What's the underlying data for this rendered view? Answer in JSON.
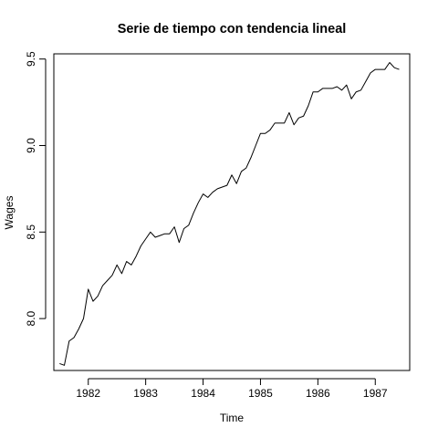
{
  "chart_data": {
    "type": "line",
    "title": "Serie de tiempo con tendencia lineal",
    "xlabel": "Time",
    "ylabel": "Wages",
    "xlim": [
      1981.4,
      1987.6
    ],
    "ylim": [
      7.7,
      9.53
    ],
    "x_ticks": [
      1982,
      1983,
      1984,
      1985,
      1986,
      1987
    ],
    "x_tick_labels": [
      "1982",
      "1983",
      "1984",
      "1985",
      "1986",
      "1987"
    ],
    "y_ticks": [
      8.0,
      8.5,
      9.0,
      9.5
    ],
    "y_tick_labels": [
      "8.0",
      "8.5",
      "9.0",
      "9.5"
    ],
    "grid": false,
    "line_color": "#000000",
    "series": [
      {
        "x": [
          1981.5,
          1981.5833,
          1981.6667,
          1981.75,
          1981.8333,
          1981.9167,
          1982.0,
          1982.0833,
          1982.1667,
          1982.25,
          1982.3333,
          1982.4167,
          1982.5,
          1982.5833,
          1982.6667,
          1982.75,
          1982.8333,
          1982.9167,
          1983.0,
          1983.0833,
          1983.1667,
          1983.25,
          1983.3333,
          1983.4167,
          1983.5,
          1983.5833,
          1983.6667,
          1983.75,
          1983.8333,
          1983.9167,
          1984.0,
          1984.0833,
          1984.1667,
          1984.25,
          1984.3333,
          1984.4167,
          1984.5,
          1984.5833,
          1984.6667,
          1984.75,
          1984.8333,
          1984.9167,
          1985.0,
          1985.0833,
          1985.1667,
          1985.25,
          1985.3333,
          1985.4167,
          1985.5,
          1985.5833,
          1985.6667,
          1985.75,
          1985.8333,
          1985.9167,
          1986.0,
          1986.0833,
          1986.1667,
          1986.25,
          1986.3333,
          1986.4167,
          1986.5,
          1986.5833,
          1986.6667,
          1986.75,
          1986.8333,
          1986.9167,
          1987.0,
          1987.0833,
          1987.1667,
          1987.25,
          1987.3333,
          1987.4167
        ],
        "values": [
          7.74,
          7.73,
          7.87,
          7.89,
          7.94,
          8.0,
          8.17,
          8.1,
          8.13,
          8.19,
          8.22,
          8.25,
          8.31,
          8.26,
          8.33,
          8.31,
          8.36,
          8.42,
          8.46,
          8.5,
          8.47,
          8.48,
          8.49,
          8.49,
          8.53,
          8.44,
          8.52,
          8.54,
          8.61,
          8.67,
          8.72,
          8.7,
          8.73,
          8.75,
          8.76,
          8.77,
          8.83,
          8.78,
          8.85,
          8.87,
          8.93,
          9.0,
          9.07,
          9.07,
          9.09,
          9.13,
          9.13,
          9.13,
          9.19,
          9.12,
          9.16,
          9.17,
          9.23,
          9.31,
          9.31,
          9.33,
          9.33,
          9.33,
          9.34,
          9.32,
          9.35,
          9.27,
          9.31,
          9.32,
          9.37,
          9.42,
          9.44,
          9.44,
          9.44,
          9.48,
          9.45,
          9.44
        ]
      }
    ]
  }
}
